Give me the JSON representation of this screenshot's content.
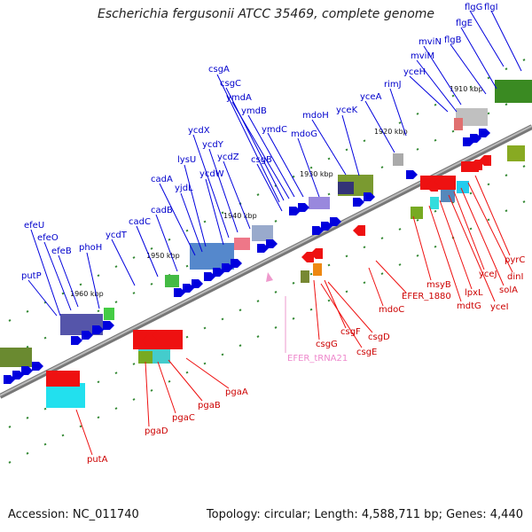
{
  "title": "Escherichia fergusonii ATCC 35469, complete genome",
  "footer": {
    "accession": "Accession: NC_011740",
    "summary": "Topology: circular; Length: 4,588,711 bp; Genes: 4,440"
  },
  "colors": {
    "forward_genes": "#0000dd",
    "reverse_genes": "#ee1111",
    "rna_genes": "#ee88cc",
    "backbone": "#888888",
    "tick": "#338833"
  },
  "kbp_labels": [
    "1910 kbp",
    "1920 kbp",
    "1930 kbp",
    "1940 kbp",
    "1950 kbp",
    "1960 kbp"
  ],
  "forward_labels": [
    "flgG",
    "flgI",
    "flgE",
    "flgB",
    "mviN",
    "mviM",
    "yceH",
    "rimJ",
    "yceA",
    "yceK",
    "mdoH",
    "mdoG",
    "ymdC",
    "ymdB",
    "ymdA",
    "csgC",
    "csgA",
    "csgB",
    "ycdZ",
    "ycdY",
    "ycdX",
    "ycdW",
    "lysU",
    "yjdL",
    "cadA",
    "cadB",
    "cadC",
    "ycdT",
    "phoH",
    "efeB",
    "efeO",
    "efeU",
    "putP"
  ],
  "reverse_labels": [
    "pyrC",
    "dinI",
    "solA",
    "yceJ",
    "yceI",
    "lpxL",
    "mdtG",
    "msyB",
    "EFER_1880",
    "mdoC",
    "csgD",
    "csgF",
    "csgE",
    "csgG",
    "pgaA",
    "pgaB",
    "pgaC",
    "pgaD",
    "putA"
  ],
  "rna_labels": [
    "EFER_tRNA21"
  ]
}
